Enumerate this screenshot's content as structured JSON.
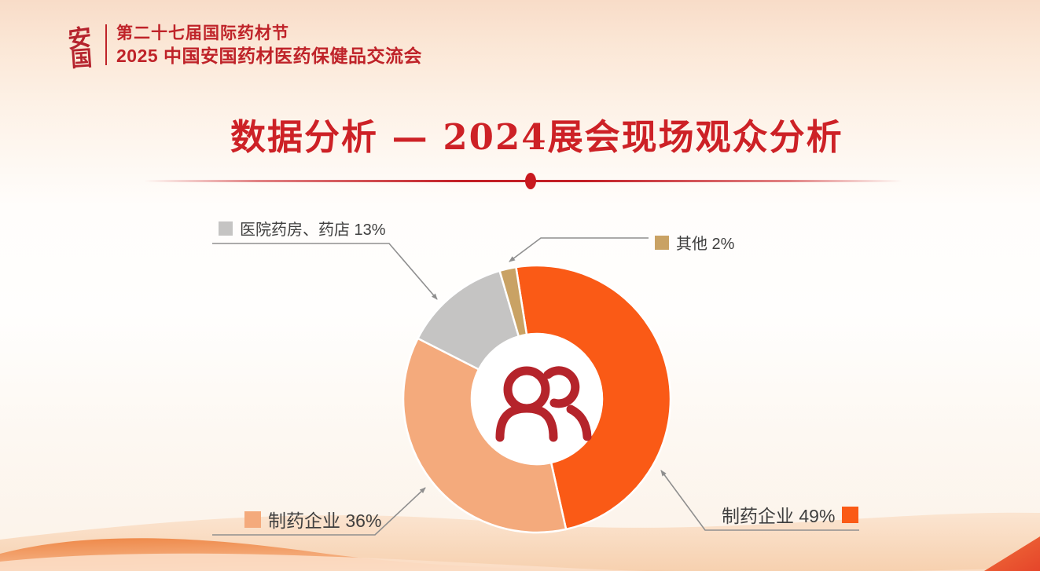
{
  "header": {
    "logo_char_top": "安",
    "logo_char_bottom": "国",
    "line1": "第二十七届国际药材节",
    "line2": "2025 中国安国药材医药保健品交流会"
  },
  "page_title": "数据分析 — 2024展会现场观众分析",
  "chart_data": {
    "type": "pie",
    "subtype": "donut",
    "title": "2024展会现场观众分析",
    "units": "percent",
    "direction": "clockwise",
    "start_angle_deg": -9,
    "inner_radius_ratio": 0.49,
    "legend_position": "callout-labels",
    "center_icon": "people-icon",
    "slices": [
      {
        "label": "制药企业",
        "value": 49,
        "color": "#fa5a16"
      },
      {
        "label": "制药企业",
        "value": 36,
        "color": "#f4aa7c"
      },
      {
        "label": "医院药房、药店",
        "value": 13,
        "color": "#c5c4c3"
      },
      {
        "label": "其他",
        "value": 2,
        "color": "#c9a264"
      }
    ]
  },
  "callouts": [
    {
      "text": "医院药房、药店 13%",
      "swatch_color": "#c5c4c3"
    },
    {
      "text": "其他 2%",
      "swatch_color": "#c9a264"
    },
    {
      "text": "制药企业 36%",
      "swatch_color": "#f4aa7c"
    },
    {
      "text": "制药企业 49%",
      "swatch_color": "#fa5a16"
    }
  ],
  "colors": {
    "brand_red": "#bf2329",
    "title_red": "#cd2126",
    "icon_red": "#b5242b",
    "callout_line_gray": "#8f8f8f",
    "label_text": "#3f3f3f"
  }
}
